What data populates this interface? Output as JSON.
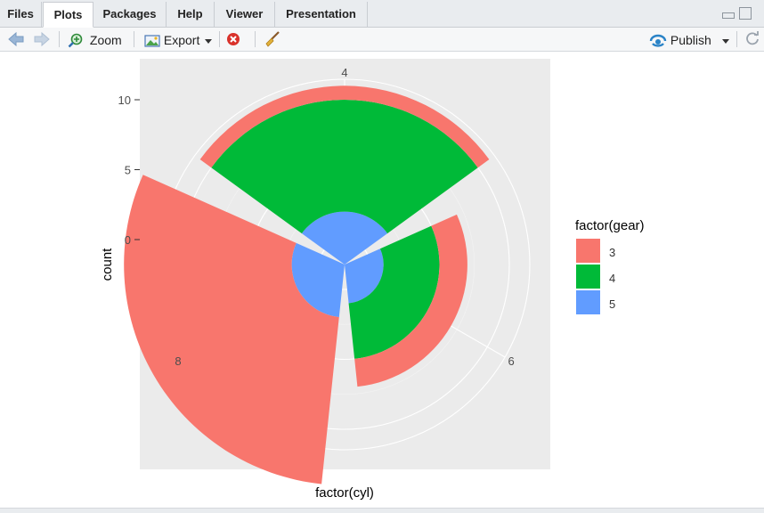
{
  "tabs": [
    {
      "label": "Files",
      "active": false
    },
    {
      "label": "Plots",
      "active": true
    },
    {
      "label": "Packages",
      "active": false
    },
    {
      "label": "Help",
      "active": false
    },
    {
      "label": "Viewer",
      "active": false
    },
    {
      "label": "Presentation",
      "active": false
    }
  ],
  "toolbar": {
    "zoom_label": "Zoom",
    "export_label": "Export",
    "publish_label": "Publish"
  },
  "colors": {
    "panel_bg": "#ebebeb",
    "gear3": "#f8766d",
    "gear4": "#00ba38",
    "gear5": "#619cff"
  },
  "chart_data": {
    "type": "polar stacked bar (coord_polar)",
    "xlabel": "factor(cyl)",
    "ylabel": "count",
    "categories": [
      "4",
      "6",
      "8"
    ],
    "series": [
      {
        "name": "3",
        "values": [
          1,
          2,
          12
        ]
      },
      {
        "name": "4",
        "values": [
          8,
          4,
          0
        ]
      },
      {
        "name": "5",
        "values": [
          2,
          1,
          2
        ]
      }
    ],
    "y_ticks": [
      "0",
      "5",
      "10"
    ],
    "legend": {
      "title": "factor(gear)",
      "labels": [
        "3",
        "4",
        "5"
      ],
      "placement": "right"
    },
    "grid": true
  }
}
